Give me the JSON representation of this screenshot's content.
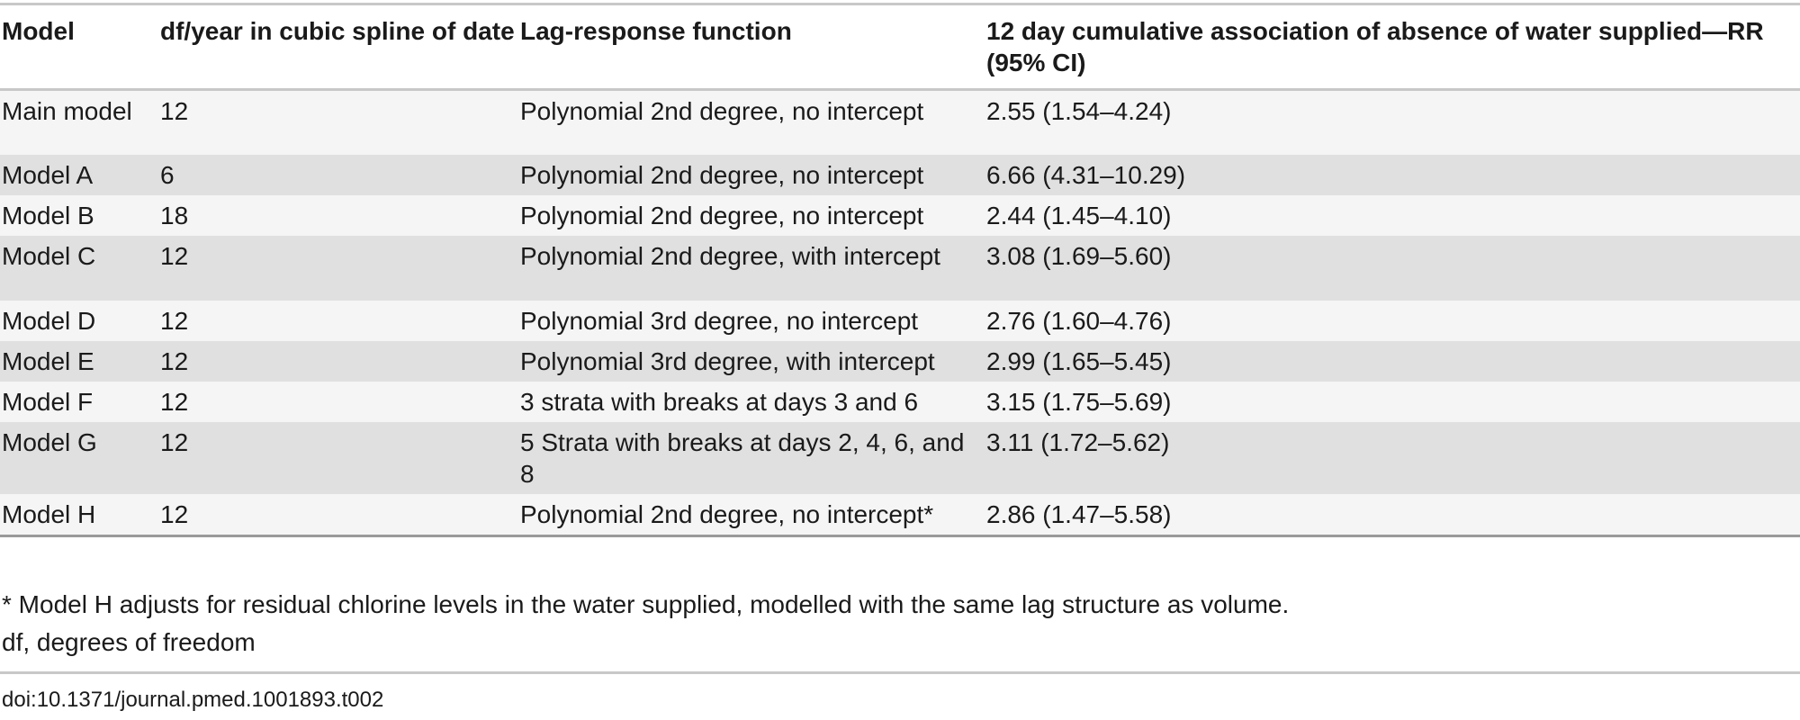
{
  "table": {
    "headers": [
      "Model",
      "df/year in cubic spline of date",
      "Lag-response function",
      "12 day cumulative association of absence of water supplied—RR (95% CI)"
    ],
    "rows": [
      [
        "Main model",
        "12",
        "Polynomial 2nd degree, no intercept",
        "2.55 (1.54–4.24)"
      ],
      [
        "Model A",
        "6",
        "Polynomial 2nd degree, no intercept",
        "6.66 (4.31–10.29)"
      ],
      [
        "Model B",
        "18",
        "Polynomial 2nd degree, no intercept",
        "2.44 (1.45–4.10)"
      ],
      [
        "Model C",
        "12",
        "Polynomial 2nd degree, with intercept",
        "3.08 (1.69–5.60)"
      ],
      [
        "Model D",
        "12",
        "Polynomial 3rd degree, no intercept",
        "2.76 (1.60–4.76)"
      ],
      [
        "Model E",
        "12",
        "Polynomial 3rd degree, with intercept",
        "2.99 (1.65–5.45)"
      ],
      [
        "Model F",
        "12",
        "3 strata with breaks at days 3 and 6",
        "3.15 (1.75–5.69)"
      ],
      [
        "Model G",
        "12",
        "5 Strata with breaks at days 2, 4, 6, and 8",
        "3.11 (1.72–5.62)"
      ],
      [
        "Model H",
        "12",
        "Polynomial 2nd degree, no intercept*",
        "2.86 (1.47–5.58)"
      ]
    ]
  },
  "footnotes": [
    "* Model H adjusts for residual chlorine levels in the water supplied, modelled with the same lag structure as volume.",
    "df, degrees of freedom"
  ],
  "doi": "doi:10.1371/journal.pmed.1001893.t002"
}
